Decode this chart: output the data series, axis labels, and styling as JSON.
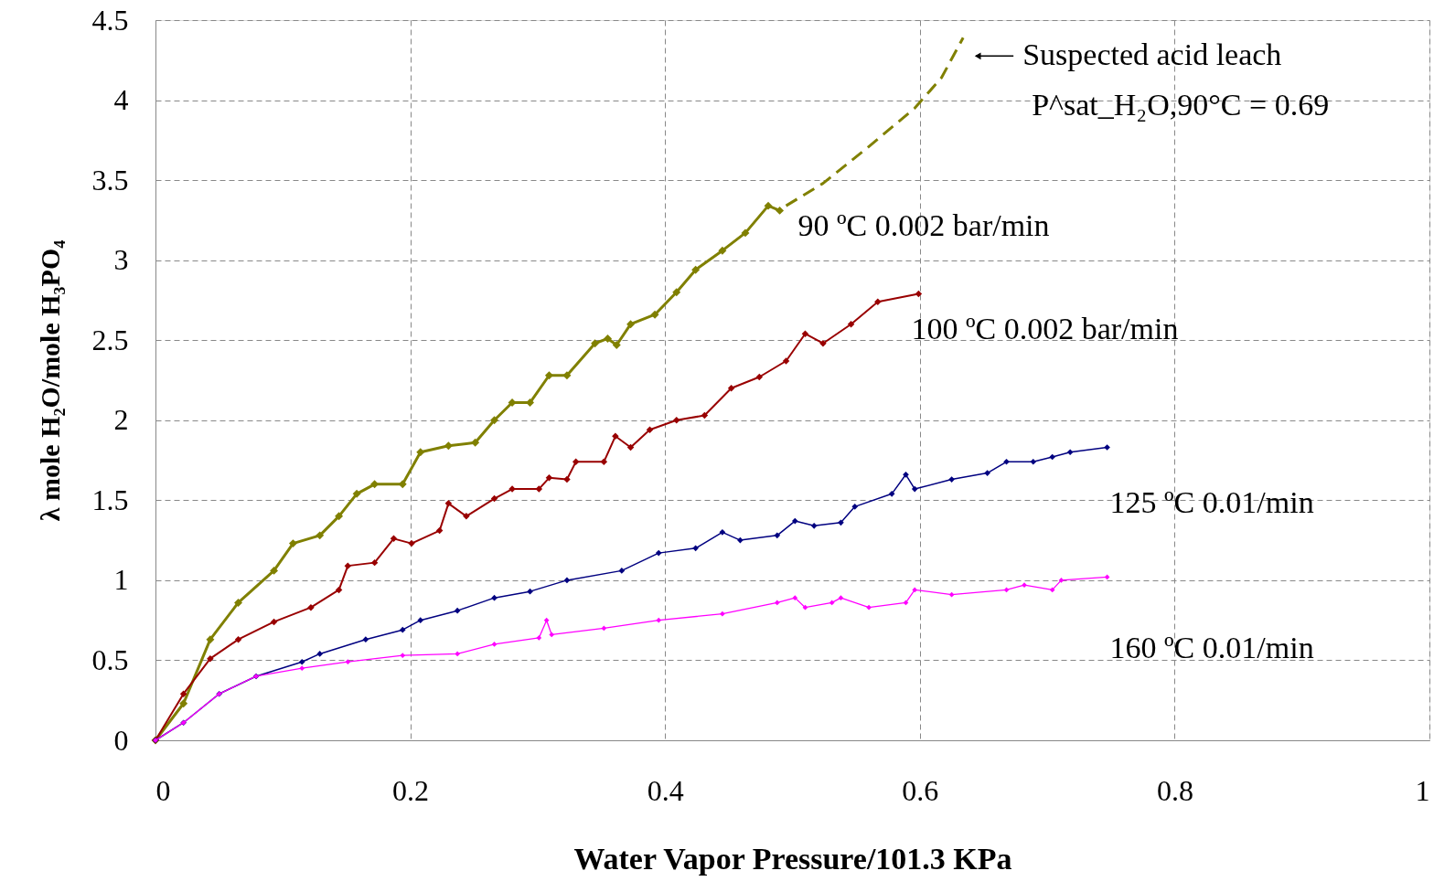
{
  "chart_data": {
    "type": "line",
    "xlabel": "Water Vapor Pressure/101.3 KPa",
    "ylabel": "λ mole H₂O/mole H₃PO₄",
    "xlim": [
      0,
      1
    ],
    "xticks": [
      0,
      0.2,
      0.4,
      0.6,
      0.8,
      1
    ],
    "ylim": [
      0,
      4.5
    ],
    "yticks": [
      0,
      0.5,
      1,
      1.5,
      2,
      2.5,
      3,
      3.5,
      4,
      4.5
    ],
    "grid": true,
    "marker": "diamond",
    "line_style": "solid",
    "annotations": [
      "Suspected acid leach",
      "P^sat_H₂O,90°C = 0.69"
    ],
    "series": [
      {
        "name": "90 ºC 0.002 bar/min",
        "color": "#808000",
        "x": [
          0,
          0.022,
          0.043,
          0.065,
          0.093,
          0.108,
          0.129,
          0.144,
          0.158,
          0.172,
          0.194,
          0.208,
          0.23,
          0.251,
          0.266,
          0.28,
          0.294,
          0.309,
          0.323,
          0.345,
          0.355,
          0.362,
          0.373,
          0.392,
          0.409,
          0.424,
          0.445,
          0.463,
          0.481,
          0.49
        ],
        "values": [
          0,
          0.23,
          0.63,
          0.86,
          1.06,
          1.23,
          1.28,
          1.4,
          1.54,
          1.6,
          1.6,
          1.8,
          1.84,
          1.86,
          2.0,
          2.11,
          2.11,
          2.28,
          2.28,
          2.48,
          2.51,
          2.47,
          2.6,
          2.66,
          2.8,
          2.94,
          3.06,
          3.17,
          3.34,
          3.31
        ]
      },
      {
        "color": "#808000",
        "marker": "none",
        "line_style": "dashed",
        "x": [
          0.495,
          0.524,
          0.56,
          0.596,
          0.617,
          0.634
        ],
        "values": [
          3.34,
          3.48,
          3.71,
          3.95,
          4.14,
          4.39
        ]
      },
      {
        "name": "100 ºC 0.002 bar/min",
        "color": "#990000",
        "x": [
          0,
          0.022,
          0.043,
          0.065,
          0.093,
          0.122,
          0.144,
          0.151,
          0.172,
          0.187,
          0.201,
          0.223,
          0.23,
          0.244,
          0.266,
          0.28,
          0.301,
          0.309,
          0.323,
          0.33,
          0.352,
          0.361,
          0.373,
          0.388,
          0.409,
          0.431,
          0.452,
          0.474,
          0.495,
          0.51,
          0.524,
          0.546,
          0.567,
          0.599
        ],
        "values": [
          0,
          0.29,
          0.51,
          0.63,
          0.74,
          0.83,
          0.94,
          1.09,
          1.11,
          1.26,
          1.23,
          1.31,
          1.48,
          1.4,
          1.51,
          1.57,
          1.57,
          1.64,
          1.63,
          1.74,
          1.74,
          1.9,
          1.83,
          1.94,
          2.0,
          2.03,
          2.2,
          2.27,
          2.37,
          2.54,
          2.48,
          2.6,
          2.74,
          2.79
        ]
      },
      {
        "name": "125 ºC 0.01/min",
        "color": "#000080",
        "x": [
          0,
          0.022,
          0.05,
          0.079,
          0.115,
          0.129,
          0.165,
          0.194,
          0.208,
          0.237,
          0.266,
          0.294,
          0.323,
          0.366,
          0.395,
          0.424,
          0.445,
          0.459,
          0.488,
          0.502,
          0.517,
          0.538,
          0.549,
          0.578,
          0.589,
          0.596,
          0.625,
          0.653,
          0.668,
          0.689,
          0.704,
          0.718,
          0.747
        ],
        "values": [
          0,
          0.11,
          0.29,
          0.4,
          0.49,
          0.54,
          0.63,
          0.69,
          0.75,
          0.81,
          0.89,
          0.93,
          1.0,
          1.06,
          1.17,
          1.2,
          1.3,
          1.25,
          1.28,
          1.37,
          1.34,
          1.36,
          1.46,
          1.54,
          1.66,
          1.57,
          1.63,
          1.67,
          1.74,
          1.74,
          1.77,
          1.8,
          1.83
        ]
      },
      {
        "name": "160 ºC 0.01/min",
        "color": "#ff00ff",
        "x": [
          0,
          0.022,
          0.05,
          0.079,
          0.115,
          0.151,
          0.194,
          0.237,
          0.266,
          0.301,
          0.307,
          0.311,
          0.352,
          0.395,
          0.445,
          0.488,
          0.502,
          0.51,
          0.531,
          0.538,
          0.56,
          0.589,
          0.596,
          0.625,
          0.668,
          0.682,
          0.704,
          0.711,
          0.747
        ],
        "values": [
          0,
          0.11,
          0.29,
          0.4,
          0.45,
          0.49,
          0.53,
          0.54,
          0.6,
          0.64,
          0.75,
          0.66,
          0.7,
          0.75,
          0.79,
          0.86,
          0.89,
          0.83,
          0.86,
          0.89,
          0.83,
          0.86,
          0.94,
          0.91,
          0.94,
          0.97,
          0.94,
          1.0,
          1.02
        ]
      }
    ]
  }
}
